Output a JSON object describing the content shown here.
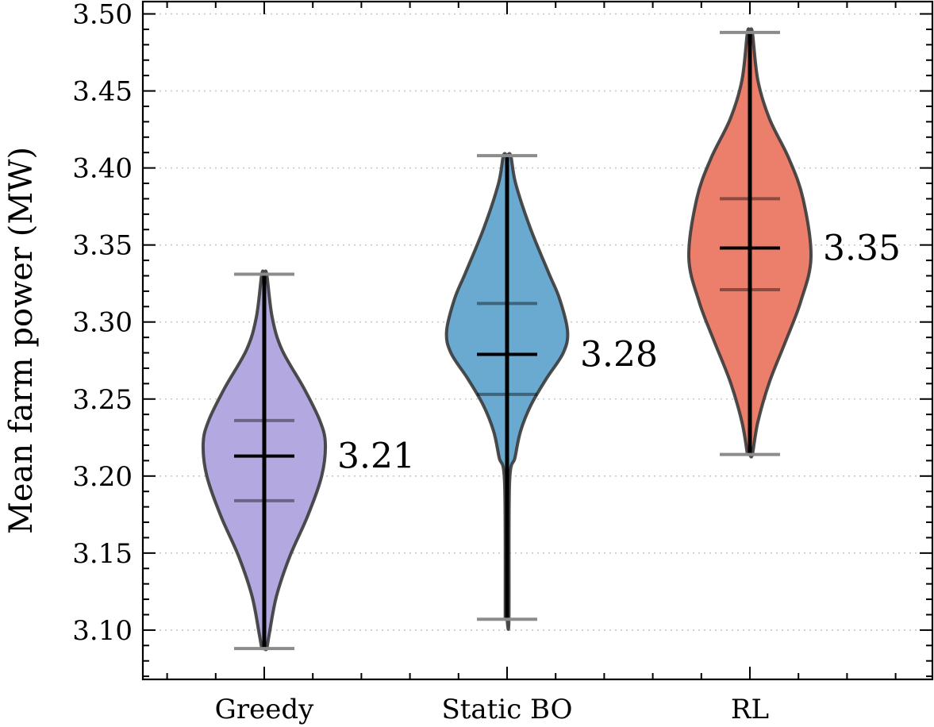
{
  "chart_data": {
    "type": "violin",
    "title": "",
    "xlabel": "",
    "ylabel": "Mean farm power (MW)",
    "ylim": [
      3.068,
      3.508
    ],
    "yticks": [
      "3.10",
      "3.15",
      "3.20",
      "3.25",
      "3.30",
      "3.35",
      "3.40",
      "3.45",
      "3.50"
    ],
    "ytick_values": [
      3.1,
      3.15,
      3.2,
      3.25,
      3.3,
      3.35,
      3.4,
      3.45,
      3.5
    ],
    "grid": "horizontal-dotted",
    "categories": [
      "Greedy",
      "Static BO",
      "RL"
    ],
    "series": [
      {
        "name": "Greedy",
        "color": "#b3a9e0",
        "min": 3.088,
        "q1": 3.184,
        "median": 3.213,
        "q3": 3.236,
        "max": 3.331,
        "annotation": "3.21",
        "density": [
          [
            3.088,
            0.04
          ],
          [
            3.097,
            0.08
          ],
          [
            3.122,
            0.2
          ],
          [
            3.148,
            0.42
          ],
          [
            3.174,
            0.71
          ],
          [
            3.2,
            0.94
          ],
          [
            3.221,
            1.0
          ],
          [
            3.236,
            0.91
          ],
          [
            3.257,
            0.65
          ],
          [
            3.282,
            0.29
          ],
          [
            3.303,
            0.13
          ],
          [
            3.331,
            0.04
          ]
        ]
      },
      {
        "name": "Static BO",
        "color": "#6aa9d0",
        "min": 3.107,
        "q1": 3.253,
        "median": 3.279,
        "q3": 3.312,
        "max": 3.408,
        "annotation": "3.28",
        "density": [
          [
            3.107,
            0.03
          ],
          [
            3.195,
            0.04
          ],
          [
            3.212,
            0.13
          ],
          [
            3.229,
            0.22
          ],
          [
            3.246,
            0.39
          ],
          [
            3.263,
            0.64
          ],
          [
            3.28,
            0.92
          ],
          [
            3.294,
            0.99
          ],
          [
            3.315,
            0.86
          ],
          [
            3.332,
            0.68
          ],
          [
            3.361,
            0.38
          ],
          [
            3.39,
            0.14
          ],
          [
            3.408,
            0.06
          ]
        ]
      },
      {
        "name": "RL",
        "color": "#ec7e6c",
        "min": 3.214,
        "q1": 3.321,
        "median": 3.348,
        "q3": 3.38,
        "max": 3.488,
        "annotation": "3.35",
        "density": [
          [
            3.214,
            0.04
          ],
          [
            3.235,
            0.13
          ],
          [
            3.261,
            0.32
          ],
          [
            3.287,
            0.58
          ],
          [
            3.313,
            0.83
          ],
          [
            3.342,
            1.0
          ],
          [
            3.38,
            0.87
          ],
          [
            3.406,
            0.64
          ],
          [
            3.432,
            0.32
          ],
          [
            3.457,
            0.13
          ],
          [
            3.488,
            0.04
          ]
        ]
      }
    ]
  }
}
